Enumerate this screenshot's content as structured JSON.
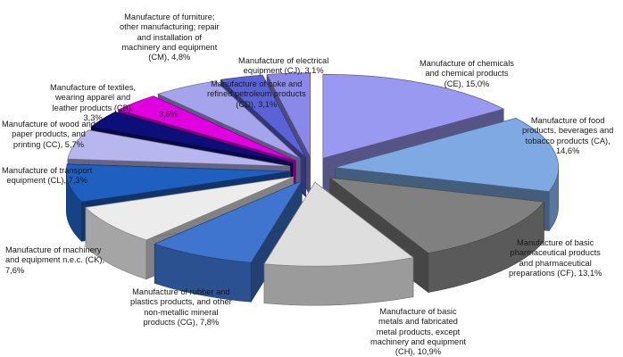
{
  "chart_data": {
    "type": "pie",
    "style": "3d-exploded",
    "slices": [
      {
        "label": "Manufacture of chemicals\nand chemical products\n(CE), 15,0%",
        "value": 15.0,
        "color": "#9a99f2"
      },
      {
        "label": "Manufacture of food\nproducts, beverages and\ntobacco products (CA),\n14,6%",
        "value": 14.6,
        "color": "#7ea9e2"
      },
      {
        "label": "Manufacture of basic\npharmaceutical products\nand pharmaceutical\npreparations (CF), 13,1%",
        "value": 13.1,
        "color": "#808080"
      },
      {
        "label": "Manufacture of basic\nmetals and fabricated\nmetal products, except\nmachinery and equipment\n(CH), 10,9%",
        "value": 10.9,
        "color": "#dedede"
      },
      {
        "label": "Manufacture of rubber and\nplastics products, and other\nnon-metallic mineral\nproducts (CG), 7,8%",
        "value": 7.8,
        "color": "#3f74cf"
      },
      {
        "label": "Manufacture of machinery\nand equipment n.e.c. (CK),\n7,6%",
        "value": 7.6,
        "color": "#ececec"
      },
      {
        "label": "Manufacture of transport\nequipment (CL), 7,3%",
        "value": 7.3,
        "color": "#1f5fbf"
      },
      {
        "label": "Manufacture of wood and\npaper products, and\nprinting (CC), 5,7%",
        "value": 5.7,
        "color": "#b8b6ee"
      },
      {
        "label": "Manufacture of textiles,\nwearing apparel and\nleather products (CB),\n3,3%",
        "value": 3.3,
        "color": "#0e0e7a"
      },
      {
        "label": "3,6%",
        "value": 3.6,
        "color": "#e000e0"
      },
      {
        "label": "Manufacture of furniture;\nother manufacturing; repair\nand installation of\nmachinery and equipment\n(CM), 4,8%",
        "value": 4.8,
        "color": "#a5a3ec"
      },
      {
        "label": "Manufacture of coke and\nrefined petroleum products\n(CD), 3,1%",
        "value": 3.1,
        "color": "#5b62d6"
      },
      {
        "label": "Manufacture of electrical\nequipment (CJ), 3,1%",
        "value": 3.1,
        "color": "#8a88e8"
      }
    ]
  }
}
